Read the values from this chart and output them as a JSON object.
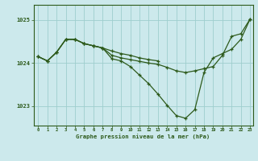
{
  "title": "Graphe pression niveau de la mer (hPa)",
  "background_color": "#cce9ec",
  "line_color": "#2d5a1b",
  "grid_color": "#9ecece",
  "xlim_min": -0.5,
  "xlim_max": 23.3,
  "ylim_min": 1022.55,
  "ylim_max": 1025.35,
  "yticks": [
    1023,
    1024,
    1025
  ],
  "xticks": [
    0,
    1,
    2,
    3,
    4,
    5,
    6,
    7,
    8,
    9,
    10,
    11,
    12,
    13,
    14,
    15,
    16,
    17,
    18,
    19,
    20,
    21,
    22,
    23
  ],
  "series1_x": [
    0,
    1,
    2,
    3,
    4,
    5,
    6,
    7,
    8,
    9,
    10,
    11,
    12,
    13,
    14,
    15,
    16,
    17,
    18,
    19,
    20,
    21,
    22,
    23
  ],
  "series1_y": [
    1024.15,
    1024.05,
    1024.25,
    1024.55,
    1024.55,
    1024.45,
    1024.4,
    1024.35,
    1024.1,
    1024.05,
    1023.92,
    1023.72,
    1023.52,
    1023.28,
    1023.02,
    1022.78,
    1022.72,
    1022.92,
    1023.78,
    1024.12,
    1024.22,
    1024.32,
    1024.55,
    1025.02
  ],
  "series2_x": [
    0,
    1,
    2,
    3,
    4,
    5,
    6,
    7,
    8,
    9,
    10,
    11,
    12,
    13,
    14,
    15,
    16,
    17,
    18,
    19,
    20,
    21,
    22,
    23
  ],
  "series2_y": [
    1024.15,
    1024.05,
    1024.25,
    1024.55,
    1024.55,
    1024.45,
    1024.4,
    1024.35,
    1024.18,
    1024.12,
    1024.08,
    1024.04,
    1024.0,
    1023.97,
    1023.9,
    1023.82,
    1023.78,
    1023.82,
    1023.87,
    1023.92,
    1024.18,
    1024.62,
    1024.68,
    1025.02
  ],
  "series3_x": [
    0,
    1,
    2,
    3,
    4,
    5,
    6,
    7,
    8,
    9,
    10,
    11,
    12,
    13
  ],
  "series3_y": [
    1024.15,
    1024.05,
    1024.25,
    1024.55,
    1024.55,
    1024.45,
    1024.4,
    1024.35,
    1024.28,
    1024.22,
    1024.18,
    1024.12,
    1024.08,
    1024.05
  ],
  "figwidth": 3.2,
  "figheight": 2.0,
  "dpi": 100
}
